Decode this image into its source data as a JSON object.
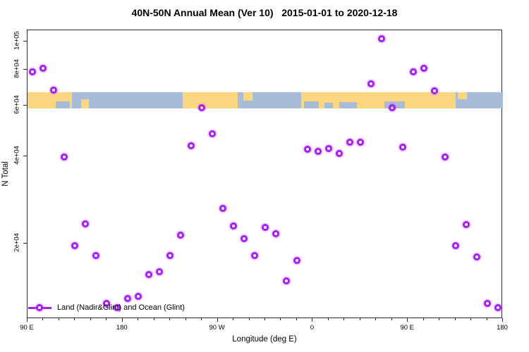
{
  "title": "40N-50N Annual Mean (Ver 10)   2015-01-01 to 2020-12-18",
  "chart_data": {
    "type": "scatter",
    "title": "40N-50N Annual Mean (Ver 10)   2015-01-01 to 2020-12-18",
    "xlabel": "Longitude (deg E)",
    "ylabel": "N Total",
    "x_range": [
      90,
      540
    ],
    "y_range": [
      10940,
      109400
    ],
    "y_scale": "log10",
    "grid": false,
    "x_major_ticks": [
      {
        "lon": 90,
        "label": "90 E"
      },
      {
        "lon": 180,
        "label": "180"
      },
      {
        "lon": 270,
        "label": "90 W"
      },
      {
        "lon": 360,
        "label": "0"
      },
      {
        "lon": 450,
        "label": "90 E"
      },
      {
        "lon": 540,
        "label": "180"
      }
    ],
    "x_minor_tick_step_deg": 15,
    "y_ticks": [
      {
        "value": 100000,
        "label": "1e+05"
      },
      {
        "value": 80000,
        "label": "8e+04"
      },
      {
        "value": 60000,
        "label": "6e+04"
      },
      {
        "value": 40000,
        "label": "4e+04"
      },
      {
        "value": 20000,
        "label": "2e+04"
      }
    ],
    "marker": {
      "shape": "open-circle",
      "color": "#a020f0"
    },
    "legend": [
      {
        "label": "Land (Nadir&Glint) and Ocean (Glint)",
        "color": "#a020f0",
        "symbol": "line-circle"
      }
    ],
    "series": [
      {
        "name": "Land (Nadir&Glint) and Ocean (Glint)",
        "points": [
          [
            95,
            78500
          ],
          [
            105,
            80800
          ],
          [
            115,
            67900
          ],
          [
            125,
            39800
          ],
          [
            135,
            19600
          ],
          [
            145,
            23300
          ],
          [
            155,
            18100
          ],
          [
            165,
            12400
          ],
          [
            175,
            12000
          ],
          [
            185,
            12900
          ],
          [
            195,
            13100
          ],
          [
            205,
            15600
          ],
          [
            215,
            15900
          ],
          [
            225,
            18100
          ],
          [
            235,
            21300
          ],
          [
            245,
            43500
          ],
          [
            255,
            59000
          ],
          [
            265,
            47900
          ],
          [
            275,
            26400
          ],
          [
            285,
            23000
          ],
          [
            295,
            20700
          ],
          [
            305,
            18100
          ],
          [
            315,
            22700
          ],
          [
            325,
            21600
          ],
          [
            335,
            14800
          ],
          [
            345,
            17400
          ],
          [
            355,
            42300
          ],
          [
            365,
            41600
          ],
          [
            375,
            42600
          ],
          [
            385,
            40900
          ],
          [
            395,
            44800
          ],
          [
            405,
            44800
          ],
          [
            415,
            71400
          ],
          [
            425,
            102300
          ],
          [
            435,
            59000
          ],
          [
            445,
            43100
          ],
          [
            455,
            78500
          ],
          [
            465,
            80800
          ],
          [
            475,
            67500
          ],
          [
            485,
            39800
          ],
          [
            495,
            19600
          ],
          [
            505,
            23200
          ],
          [
            515,
            17900
          ],
          [
            525,
            12400
          ],
          [
            535,
            12000
          ]
        ]
      }
    ],
    "map_band": {
      "description": "land-ocean strip for 40N-50N latitude belt",
      "land_color": "#fcd681",
      "ocean_color": "#a8bcd8",
      "y_top_value": 66700,
      "y_bottom_value": 58600,
      "segments": [
        {
          "from": 90,
          "to": 132,
          "surface": "land"
        },
        {
          "from": 132,
          "to": 237,
          "surface": "ocean"
        },
        {
          "from": 237,
          "to": 289,
          "surface": "land"
        },
        {
          "from": 289,
          "to": 349,
          "surface": "ocean"
        },
        {
          "from": 349,
          "to": 495,
          "surface": "land"
        },
        {
          "from": 495,
          "to": 540,
          "surface": "ocean"
        }
      ],
      "patches": [
        {
          "from": 117,
          "to": 130,
          "surface": "ocean",
          "edge": "bottom",
          "frac": 0.45
        },
        {
          "from": 141,
          "to": 148,
          "surface": "land",
          "edge": "bottom",
          "frac": 0.55
        },
        {
          "from": 294,
          "to": 303,
          "surface": "land",
          "edge": "top",
          "frac": 0.5
        },
        {
          "from": 352,
          "to": 366,
          "surface": "ocean",
          "edge": "bottom",
          "frac": 0.45
        },
        {
          "from": 371,
          "to": 379,
          "surface": "ocean",
          "edge": "bottom",
          "frac": 0.35
        },
        {
          "from": 385,
          "to": 402,
          "surface": "ocean",
          "edge": "bottom",
          "frac": 0.4
        },
        {
          "from": 428,
          "to": 447,
          "surface": "ocean",
          "edge": "bottom",
          "frac": 0.45
        },
        {
          "from": 497,
          "to": 506,
          "surface": "land",
          "edge": "top",
          "frac": 0.45
        }
      ]
    }
  }
}
